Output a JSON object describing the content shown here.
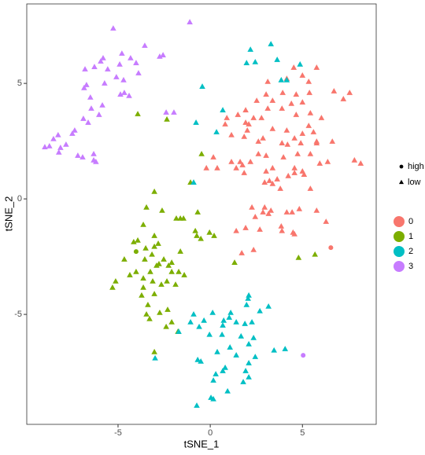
{
  "chart_data": {
    "type": "scatter",
    "xlabel": "tSNE_1",
    "ylabel": "tSNE_2",
    "xlim": [
      -9.95,
      9.0
    ],
    "ylim": [
      -9.76,
      8.44
    ],
    "xticks": [
      -5,
      0,
      5
    ],
    "yticks": [
      -5,
      0,
      5
    ],
    "grid": false,
    "shape_legend": [
      {
        "label": "high",
        "shape": "circle"
      },
      {
        "label": "low",
        "shape": "triangle"
      }
    ],
    "series": [
      {
        "name": "0",
        "color": "#F8766D",
        "x": [
          4.53,
          5.0,
          5.77,
          4.15,
          5.34,
          6.71,
          7.56,
          7.22,
          3.12,
          3.03,
          3.93,
          4.66,
          5.38,
          2.52,
          3.38,
          4.4,
          5.0,
          1.92,
          3.12,
          3.89,
          1.5,
          0.9,
          1.92,
          2.35,
          2.78,
          4.66,
          5.43,
          6.03,
          0.81,
          2.09,
          2.01,
          3.38,
          4.15,
          5.34,
          5.6,
          5.77,
          5.0,
          4.57,
          1.15,
          1.84,
          2.86,
          3.89,
          4.19,
          4.91,
          5.77,
          6.62,
          2.61,
          7.82,
          8.16,
          0.17,
          1.15,
          1.62,
          2.18,
          2.61,
          3.03,
          4.74,
          5.43,
          6.37,
          3.97,
          5.94,
          -0.21,
          0.38,
          1.41,
          3.38,
          3.03,
          4.57,
          5.0,
          1.75,
          4.57,
          1.84,
          3.63,
          4.23,
          5.09,
          3.21,
          3.38,
          2.95,
          3.8,
          5.43,
          2.95,
          3.29,
          3.16,
          4.15,
          4.44,
          5.77,
          4.83,
          2.86,
          2.26,
          2.44,
          1.92,
          1.41,
          2.69,
          3.85,
          3.89,
          4.49,
          4.57,
          6.28,
          2.35,
          1.71,
          6.54
        ],
        "values": [
          5.68,
          5.34,
          5.68,
          5.2,
          5.07,
          4.66,
          4.59,
          4.32,
          5.07,
          4.52,
          4.59,
          4.52,
          4.59,
          4.25,
          4.25,
          4.12,
          4.18,
          3.84,
          3.91,
          3.91,
          3.64,
          3.5,
          3.3,
          3.5,
          3.5,
          3.64,
          3.71,
          3.5,
          3.23,
          3.23,
          2.96,
          3.03,
          2.96,
          3.16,
          2.89,
          2.48,
          2.82,
          2.62,
          2.76,
          2.69,
          2.62,
          2.41,
          2.35,
          2.41,
          2.41,
          2.48,
          2.48,
          1.67,
          1.53,
          1.8,
          1.6,
          1.6,
          1.6,
          1.94,
          1.87,
          1.94,
          1.94,
          1.6,
          1.8,
          1.53,
          1.33,
          1.33,
          1.33,
          1.33,
          1.19,
          1.12,
          1.19,
          1.46,
          1.33,
          1.12,
          0.85,
          0.99,
          1.05,
          0.78,
          0.65,
          0.71,
          0.44,
          0.44,
          -0.37,
          -0.51,
          -0.65,
          -0.58,
          -0.58,
          -0.51,
          -0.44,
          -0.58,
          -0.37,
          -0.78,
          -1.26,
          -1.39,
          -1.33,
          -1.19,
          -1.39,
          -1.46,
          -1.53,
          -0.99,
          -2.21,
          -2.35,
          -2.11
        ],
        "shape": [
          "low",
          "low",
          "low",
          "low",
          "low",
          "low",
          "low",
          "low",
          "low",
          "low",
          "low",
          "low",
          "low",
          "low",
          "low",
          "low",
          "low",
          "low",
          "low",
          "low",
          "low",
          "low",
          "low",
          "low",
          "low",
          "low",
          "low",
          "low",
          "low",
          "low",
          "low",
          "low",
          "low",
          "low",
          "low",
          "low",
          "low",
          "low",
          "low",
          "low",
          "low",
          "low",
          "low",
          "low",
          "low",
          "low",
          "low",
          "low",
          "low",
          "low",
          "low",
          "low",
          "low",
          "low",
          "low",
          "low",
          "low",
          "low",
          "low",
          "low",
          "low",
          "low",
          "low",
          "low",
          "low",
          "low",
          "low",
          "low",
          "low",
          "low",
          "low",
          "low",
          "low",
          "low",
          "low",
          "low",
          "low",
          "low",
          "low",
          "low",
          "low",
          "low",
          "low",
          "low",
          "low",
          "low",
          "low",
          "low",
          "low",
          "low",
          "low",
          "low",
          "low",
          "low",
          "low",
          "low",
          "low",
          "low",
          "high"
        ]
      },
      {
        "name": "1",
        "color": "#7CAE00",
        "x": [
          -3.93,
          -2.35,
          -0.47,
          -1.07,
          -3.03,
          -2.61,
          -1.62,
          -1.84,
          -1.45,
          -0.68,
          -3.46,
          -3.63,
          -0.81,
          -0.73,
          0.21,
          -0.04,
          -0.51,
          -3.03,
          -3.93,
          -4.15,
          -2.82,
          -3.03,
          -3.5,
          -3.16,
          -3.55,
          -4.66,
          -2.52,
          -1.62,
          1.32,
          -2.09,
          -2.26,
          -2.78,
          -2.91,
          -4.02,
          -3.25,
          -2.09,
          -4.36,
          -3.63,
          -1.71,
          -1.41,
          -3.12,
          -2.65,
          -2.35,
          -1.88,
          -5.13,
          -5.3,
          -3.63,
          -3.03,
          -3.72,
          -3.38,
          -2.31,
          -2.74,
          -3.46,
          -3.29,
          -2.09,
          -2.39,
          -1.75,
          -3.03,
          4.79,
          5.68,
          -4.02
        ],
        "values": [
          3.67,
          3.44,
          1.94,
          0.71,
          0.31,
          -0.51,
          -0.85,
          -0.85,
          -0.85,
          -0.58,
          -0.37,
          -1.12,
          -1.39,
          -1.6,
          -1.6,
          -1.46,
          -1.73,
          -1.6,
          -1.8,
          -1.87,
          -1.94,
          -2.07,
          -2.14,
          -2.41,
          -2.62,
          -2.62,
          -2.62,
          -2.28,
          -2.76,
          -2.76,
          -2.89,
          -2.82,
          -2.89,
          -3.16,
          -3.16,
          -3.16,
          -3.3,
          -3.44,
          -3.16,
          -3.3,
          -3.57,
          -3.71,
          -3.57,
          -3.71,
          -3.57,
          -3.84,
          -3.84,
          -4.12,
          -4.18,
          -4.59,
          -4.8,
          -4.93,
          -5.0,
          -5.2,
          -5.34,
          -5.54,
          -5.75,
          -6.63,
          -2.55,
          -2.41,
          -2.28
        ],
        "shape": [
          "low",
          "low",
          "low",
          "low",
          "low",
          "low",
          "low",
          "low",
          "low",
          "low",
          "low",
          "low",
          "low",
          "low",
          "low",
          "low",
          "low",
          "low",
          "low",
          "low",
          "low",
          "low",
          "low",
          "low",
          "low",
          "low",
          "low",
          "low",
          "low",
          "low",
          "low",
          "low",
          "low",
          "low",
          "low",
          "low",
          "low",
          "low",
          "low",
          "low",
          "low",
          "low",
          "low",
          "low",
          "low",
          "low",
          "low",
          "low",
          "low",
          "low",
          "low",
          "low",
          "low",
          "low",
          "low",
          "low",
          "low",
          "low",
          "low",
          "low",
          "high"
        ]
      },
      {
        "name": "2",
        "color": "#00BFC4",
        "x": [
          2.18,
          3.29,
          1.97,
          2.44,
          3.63,
          4.87,
          3.85,
          4.15,
          -0.43,
          -0.77,
          0.68,
          0.34,
          -0.9,
          2.09,
          2.05,
          3.16,
          1.97,
          2.69,
          1.11,
          1.03,
          -0.9,
          0.13,
          -0.34,
          -1.07,
          0.73,
          1.41,
          0.68,
          1.88,
          2.26,
          -0.6,
          -0.04,
          -1.71,
          0.64,
          1.67,
          2.35,
          2.09,
          1.07,
          3.46,
          4.06,
          -0.51,
          -0.68,
          0.38,
          1.41,
          2.44,
          2.09,
          0.81,
          0.68,
          0.3,
          1.92,
          2.09,
          0.17,
          1.79,
          0.94,
          0.04,
          0.17,
          -0.73,
          -2.99
        ],
        "values": [
          6.46,
          6.7,
          5.88,
          5.92,
          6.02,
          5.82,
          5.14,
          5.14,
          4.86,
          3.3,
          3.84,
          2.89,
          0.71,
          -4.18,
          -4.32,
          -4.66,
          -4.59,
          -4.86,
          -4.93,
          -5.14,
          -5.0,
          -4.93,
          -5.27,
          -5.34,
          -5.27,
          -5.34,
          -5.48,
          -5.41,
          -5.34,
          -5.54,
          -5.88,
          -5.75,
          -5.88,
          -5.95,
          -6.02,
          -6.29,
          -6.43,
          -6.56,
          -6.5,
          -7.04,
          -6.97,
          -6.63,
          -6.77,
          -6.84,
          -7.11,
          -7.31,
          -7.45,
          -7.59,
          -7.45,
          -7.72,
          -7.86,
          -7.93,
          -8.33,
          -8.61,
          -8.67,
          -8.95,
          -6.9
        ],
        "shape": [
          "low",
          "low",
          "low",
          "low",
          "low",
          "low",
          "low",
          "low",
          "low",
          "low",
          "low",
          "low",
          "low",
          "low",
          "low",
          "low",
          "low",
          "low",
          "low",
          "low",
          "low",
          "low",
          "low",
          "low",
          "low",
          "low",
          "low",
          "low",
          "low",
          "low",
          "low",
          "low",
          "low",
          "low",
          "low",
          "low",
          "low",
          "low",
          "low",
          "low",
          "low",
          "low",
          "low",
          "low",
          "low",
          "low",
          "low",
          "low",
          "low",
          "low",
          "low",
          "low",
          "low",
          "low",
          "low",
          "low",
          "low"
        ]
      },
      {
        "name": "3",
        "color": "#C77CFF",
        "x": [
          -5.26,
          -1.11,
          -3.55,
          -2.74,
          -2.56,
          -4.79,
          -4.32,
          -5.81,
          -5.94,
          -6.28,
          -6.79,
          -5.56,
          -4.91,
          -4.02,
          -3.89,
          -5.09,
          -4.7,
          -5.73,
          -6.71,
          -6.84,
          -6.5,
          -4.66,
          -4.87,
          -4.4,
          -5.85,
          -6.45,
          -6.03,
          -6.88,
          -6.62,
          -7.35,
          -7.48,
          -8.25,
          -8.5,
          -7.82,
          -8.72,
          -8.97,
          -8.12,
          -8.21,
          -7.18,
          -6.32,
          -6.92,
          -6.32,
          -6.2,
          -2.39,
          -1.97,
          5.04
        ],
        "values": [
          7.38,
          7.65,
          6.63,
          6.16,
          6.22,
          6.29,
          6.09,
          6.09,
          5.95,
          5.71,
          5.61,
          5.61,
          5.82,
          5.88,
          5.44,
          5.27,
          5.14,
          5.0,
          4.93,
          4.8,
          4.39,
          4.59,
          4.52,
          4.46,
          4.05,
          3.91,
          3.64,
          3.47,
          3.3,
          2.96,
          2.82,
          2.76,
          2.59,
          2.35,
          2.28,
          2.24,
          2.21,
          2.01,
          1.87,
          1.94,
          1.8,
          1.67,
          1.6,
          3.74,
          3.74,
          -6.77
        ],
        "shape": [
          "low",
          "low",
          "low",
          "low",
          "low",
          "low",
          "low",
          "low",
          "low",
          "low",
          "low",
          "low",
          "low",
          "low",
          "low",
          "low",
          "low",
          "low",
          "low",
          "low",
          "low",
          "low",
          "low",
          "low",
          "low",
          "low",
          "low",
          "low",
          "low",
          "low",
          "low",
          "low",
          "low",
          "low",
          "low",
          "low",
          "low",
          "low",
          "low",
          "low",
          "low",
          "low",
          "low",
          "low",
          "low",
          "high"
        ]
      }
    ]
  }
}
